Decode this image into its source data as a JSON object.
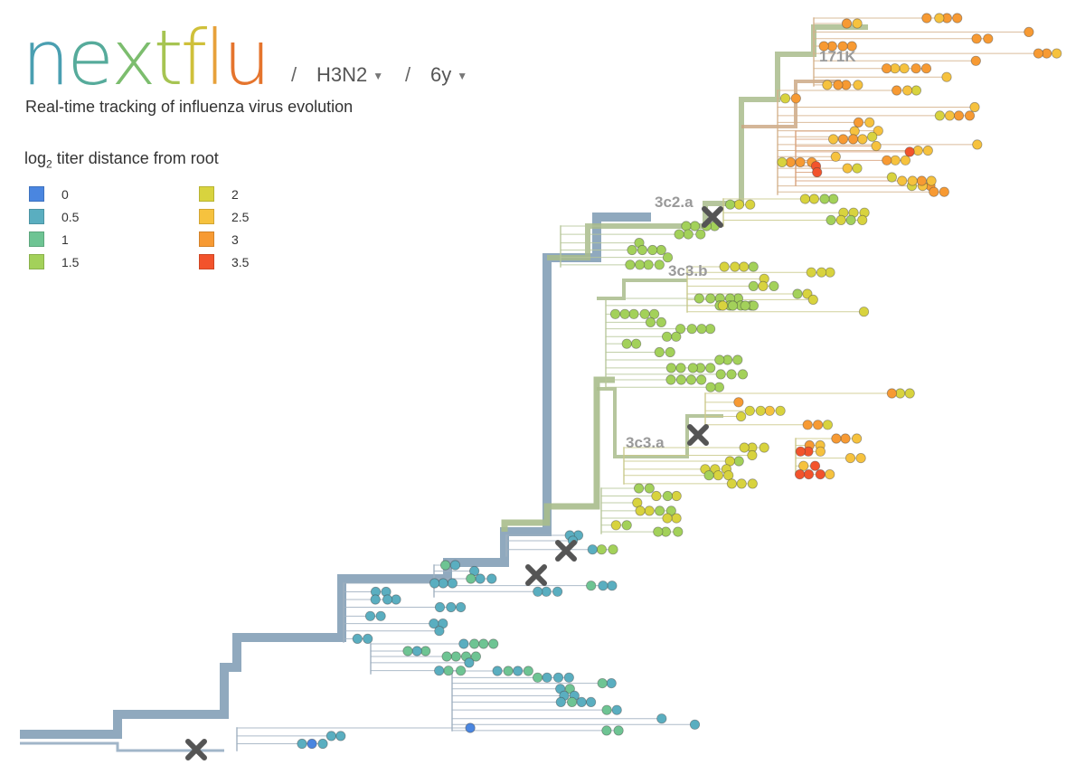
{
  "header": {
    "logo_letters": [
      "n",
      "e",
      "x",
      "t",
      "f",
      "l",
      "u"
    ],
    "logo_colors": [
      "#4a9fb1",
      "#56ab9b",
      "#7cbd6e",
      "#a6c452",
      "#cfc03a",
      "#e7a13a",
      "#e5742d"
    ],
    "separator": "/",
    "lineage": "H3N2",
    "resolution": "6y",
    "subtitle": "Real-time tracking of influenza virus evolution"
  },
  "legend": {
    "title_pre": "log",
    "title_sub": "2",
    "title_post": " titer distance from root",
    "items": [
      {
        "label": "0",
        "color": "#4a86e0"
      },
      {
        "label": "0.5",
        "color": "#5aaec0"
      },
      {
        "label": "1",
        "color": "#6ec493"
      },
      {
        "label": "1.5",
        "color": "#a3d15a"
      },
      {
        "label": "2",
        "color": "#d8d33e"
      },
      {
        "label": "2.5",
        "color": "#f6c23e"
      },
      {
        "label": "3",
        "color": "#f79a33"
      },
      {
        "label": "3.5",
        "color": "#f2532c"
      }
    ]
  },
  "clades": [
    {
      "name": "171K"
    },
    {
      "name": "3c2.a"
    },
    {
      "name": "3c3.b"
    },
    {
      "name": "3c3.a"
    }
  ],
  "colors": {
    "trunk_early": "#8aa4bb",
    "trunk_mid": "#a9bc8c",
    "trunk_late": "#c9a47e",
    "mutation_marker": "#555555"
  }
}
